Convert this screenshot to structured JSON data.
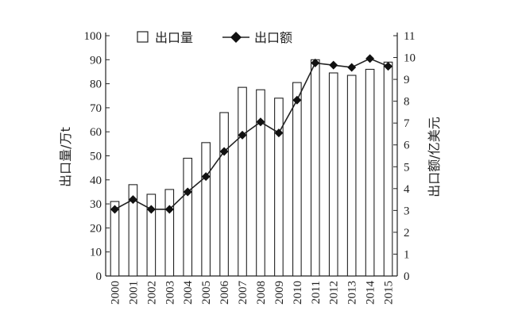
{
  "chart_data": {
    "type": "bar+line",
    "categories": [
      "2000",
      "2001",
      "2002",
      "2003",
      "2004",
      "2005",
      "2006",
      "2007",
      "2008",
      "2009",
      "2010",
      "2011",
      "2012",
      "2013",
      "2014",
      "2015"
    ],
    "series": [
      {
        "name": "出口量",
        "kind": "bar",
        "axis": "left",
        "values": [
          31,
          38,
          34,
          36,
          49,
          55.5,
          68,
          78.5,
          77.5,
          74,
          80.5,
          90,
          84.5,
          83.5,
          86,
          89
        ]
      },
      {
        "name": "出口额",
        "kind": "line",
        "axis": "right",
        "values": [
          3.05,
          3.5,
          3.05,
          3.05,
          3.85,
          4.55,
          5.7,
          6.45,
          7.05,
          6.55,
          8.05,
          9.75,
          9.65,
          9.55,
          9.95,
          9.6
        ]
      }
    ],
    "ylabel_left": "出口量/万t",
    "ylabel_right": "出口额/亿美元",
    "ylim_left": [
      0,
      100
    ],
    "yticks_left": [
      0,
      10,
      20,
      30,
      40,
      50,
      60,
      70,
      80,
      90,
      100
    ],
    "ylim_right": [
      0,
      11
    ],
    "yticks_right": [
      0,
      1,
      2,
      3,
      4,
      5,
      6,
      7,
      8,
      9,
      10,
      11
    ],
    "grid": false,
    "legend_position": "top",
    "colors": {
      "bar_fill": "#ffffff",
      "bar_stroke": "#222222",
      "line": "#222222",
      "marker": "#111111"
    }
  }
}
